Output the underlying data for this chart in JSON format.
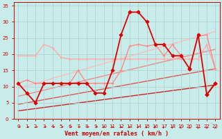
{
  "xlabel": "Vent moyen/en rafales ( km/h )",
  "xlim": [
    -0.5,
    23.5
  ],
  "ylim": [
    0,
    36
  ],
  "yticks": [
    0,
    5,
    10,
    15,
    20,
    25,
    30,
    35
  ],
  "xticks": [
    0,
    1,
    2,
    3,
    4,
    5,
    6,
    7,
    8,
    9,
    10,
    11,
    12,
    13,
    14,
    15,
    16,
    17,
    18,
    19,
    20,
    21,
    22,
    23
  ],
  "bg_color": "#c8ecea",
  "grid_color": "#b0d4d0",
  "trend_lines": [
    {
      "x": [
        0,
        23
      ],
      "y": [
        2.5,
        10.5
      ],
      "color": "#cc2222",
      "lw": 1.0
    },
    {
      "x": [
        0,
        23
      ],
      "y": [
        4.5,
        15.5
      ],
      "color": "#dd5555",
      "lw": 1.0
    },
    {
      "x": [
        0,
        23
      ],
      "y": [
        7.0,
        21.5
      ],
      "color": "#ee8888",
      "lw": 1.0
    },
    {
      "x": [
        0,
        23
      ],
      "y": [
        9.5,
        27.0
      ],
      "color": "#ffbbbb",
      "lw": 1.0
    }
  ],
  "series": [
    {
      "name": "light_pink_flat",
      "x": [
        0,
        1,
        2,
        3,
        4,
        5,
        6,
        7,
        8,
        9,
        10,
        11,
        12,
        13,
        14,
        15,
        16,
        17,
        18,
        19,
        20,
        21,
        22,
        23
      ],
      "y": [
        19.5,
        19.5,
        19.5,
        23,
        22,
        19,
        18.5,
        18.5,
        18.5,
        18.5,
        18.5,
        18.5,
        18.5,
        18.5,
        18.5,
        18.5,
        18.5,
        18.5,
        18.5,
        18.5,
        18.5,
        18.5,
        23,
        15.5
      ],
      "color": "#ffaaaa",
      "lw": 1.0,
      "marker": "+",
      "ms": 3.0,
      "mew": 0.8
    },
    {
      "name": "medium_pink",
      "x": [
        0,
        1,
        2,
        3,
        4,
        5,
        6,
        7,
        8,
        9,
        10,
        11,
        12,
        13,
        14,
        15,
        16,
        17,
        18,
        19,
        20,
        21,
        22,
        23
      ],
      "y": [
        11,
        12,
        11,
        11,
        11,
        11,
        11,
        15,
        11,
        11,
        11,
        11,
        15,
        22.5,
        23,
        22.5,
        23,
        19.5,
        23,
        19.5,
        15.5,
        25.5,
        26,
        15.5
      ],
      "color": "#ff8888",
      "lw": 1.0,
      "marker": "+",
      "ms": 3.0,
      "mew": 0.8
    },
    {
      "name": "dark_red_main",
      "x": [
        0,
        1,
        2,
        3,
        4,
        5,
        6,
        7,
        8,
        9,
        10,
        11,
        12,
        13,
        14,
        15,
        16,
        17,
        18,
        19,
        20,
        21,
        22,
        23
      ],
      "y": [
        11,
        8,
        5,
        11,
        11,
        11,
        11,
        11,
        11,
        8,
        8,
        15,
        26,
        33,
        33,
        30,
        23,
        23,
        19.5,
        19.5,
        15.5,
        null,
        7.5,
        11
      ],
      "color": "#dd0000",
      "lw": 1.3,
      "marker": "D",
      "ms": 2.5,
      "mew": 0.8
    },
    {
      "name": "dark_red_right",
      "x": [
        20,
        21,
        22,
        23
      ],
      "y": [
        15.5,
        26,
        7.5,
        11
      ],
      "color": "#dd0000",
      "lw": 1.3,
      "marker": "D",
      "ms": 2.5,
      "mew": 0.8
    }
  ],
  "arrow_color": "#cc0000",
  "axis_color": "#cc0000",
  "tick_fontsize": 5.0,
  "xlabel_fontsize": 6.0
}
